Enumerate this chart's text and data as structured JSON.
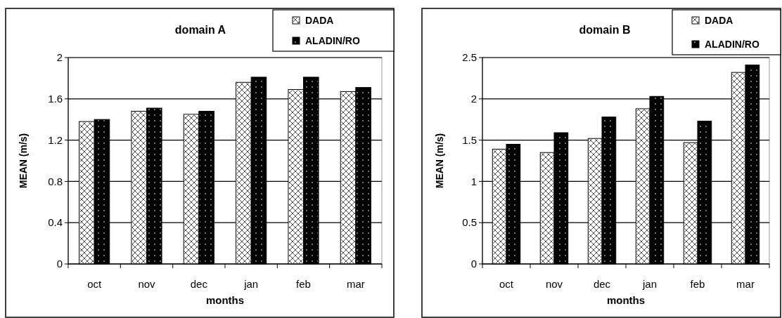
{
  "chart_data": [
    {
      "type": "bar",
      "title": "domain A",
      "xlabel": "months",
      "ylabel": "MEAN (m/s)",
      "categories": [
        "oct",
        "nov",
        "dec",
        "jan",
        "feb",
        "mar"
      ],
      "series": [
        {
          "name": "DADA",
          "color": "#ffffff",
          "values": [
            1.38,
            1.48,
            1.45,
            1.76,
            1.69,
            1.67
          ]
        },
        {
          "name": "ALADIN/RO",
          "color": "#000000",
          "values": [
            1.4,
            1.51,
            1.48,
            1.81,
            1.81,
            1.71
          ]
        }
      ],
      "ylim": [
        0,
        2
      ],
      "yticks": [
        0,
        0.4,
        0.8,
        1.2,
        1.6,
        2
      ],
      "grid": "y",
      "legend": "top right"
    },
    {
      "type": "bar",
      "title": "domain B",
      "xlabel": "months",
      "ylabel": "MEAN (m/s)",
      "categories": [
        "oct",
        "nov",
        "dec",
        "jan",
        "feb",
        "mar"
      ],
      "series": [
        {
          "name": "DADA",
          "color": "#ffffff",
          "values": [
            1.39,
            1.35,
            1.52,
            1.88,
            1.47,
            2.32
          ]
        },
        {
          "name": "ALADIN/RO",
          "color": "#000000",
          "values": [
            1.45,
            1.59,
            1.78,
            2.03,
            1.73,
            2.41
          ]
        }
      ],
      "ylim": [
        0,
        2.5
      ],
      "yticks": [
        0,
        0.5,
        1,
        1.5,
        2,
        2.5
      ],
      "grid": "y",
      "legend": "top right"
    }
  ]
}
